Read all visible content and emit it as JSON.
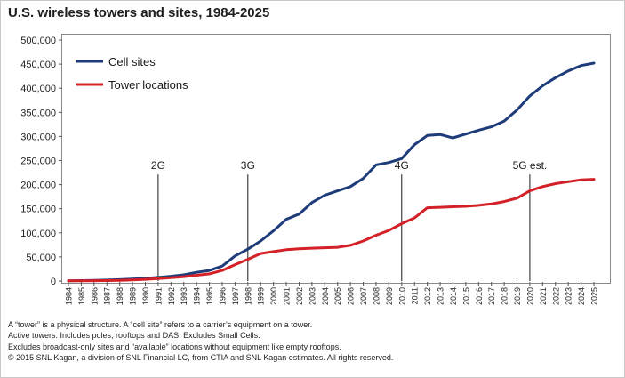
{
  "title": "U.S. wireless towers and sites, 1984-2025",
  "notes": [
    "A “tower” is a physical structure.  A “cell site” refers to a carrier’s equipment on a tower.",
    "Active towers.  Includes poles, rooftops and DAS.  Excludes Small Cells.",
    "Excludes broadcast-only sites and “available” locations without equipment like empty rooftops.",
    "© 2015 SNL Kagan, a division of SNL Financial LC, from CTIA and SNL Kagan estimates. All rights reserved."
  ],
  "chart_data": {
    "type": "line",
    "title": "U.S. wireless towers and sites, 1984-2025",
    "xlabel": "",
    "ylabel": "",
    "x": [
      1984,
      1985,
      1986,
      1987,
      1988,
      1989,
      1990,
      1991,
      1992,
      1993,
      1994,
      1995,
      1996,
      1997,
      1998,
      1999,
      2000,
      2001,
      2002,
      2003,
      2004,
      2005,
      2006,
      2007,
      2008,
      2009,
      2010,
      2011,
      2012,
      2013,
      2014,
      2015,
      2016,
      2017,
      2018,
      2019,
      2020,
      2021,
      2022,
      2023,
      2024,
      2025
    ],
    "xlim": [
      1984,
      2025
    ],
    "ylim": [
      0,
      500000
    ],
    "yticks": [
      0,
      50000,
      100000,
      150000,
      200000,
      250000,
      300000,
      350000,
      400000,
      450000,
      500000
    ],
    "ytick_labels": [
      "0",
      "50,000",
      "100,000",
      "150,000",
      "200,000",
      "250,000",
      "300,000",
      "350,000",
      "400,000",
      "450,000",
      "500,000"
    ],
    "grid": false,
    "legend_position": "top-left",
    "series": [
      {
        "name": "Cell sites",
        "color": "#1f3c7a",
        "values": [
          500,
          900,
          1500,
          2000,
          3000,
          4000,
          5500,
          7500,
          10000,
          13000,
          18000,
          22000,
          31000,
          52000,
          66000,
          83000,
          104000,
          128000,
          139000,
          163000,
          178000,
          187000,
          196000,
          213000,
          241000,
          246000,
          254000,
          283000,
          302000,
          304000,
          297000,
          305000,
          313000,
          320000,
          332000,
          355000,
          384000,
          405000,
          422000,
          436000,
          447000,
          452000
        ]
      },
      {
        "name": "Tower locations",
        "color": "#d42027",
        "values": [
          300,
          500,
          700,
          1000,
          1500,
          2200,
          3500,
          5000,
          7000,
          9000,
          12000,
          15000,
          22000,
          34000,
          45000,
          57000,
          61000,
          65000,
          67000,
          68000,
          69000,
          70000,
          74000,
          83000,
          95000,
          105000,
          119000,
          131000,
          152000,
          153000,
          154000,
          155000,
          157000,
          160000,
          165000,
          172000,
          187000,
          196000,
          202000,
          206000,
          210000,
          211000
        ]
      }
    ],
    "annotations": [
      {
        "label": "2G",
        "x": 1991,
        "y": 221000
      },
      {
        "label": "3G",
        "x": 1998,
        "y": 221000
      },
      {
        "label": "4G",
        "x": 2010,
        "y": 221000
      },
      {
        "label": "5G est.",
        "x": 2020,
        "y": 221000
      }
    ]
  }
}
